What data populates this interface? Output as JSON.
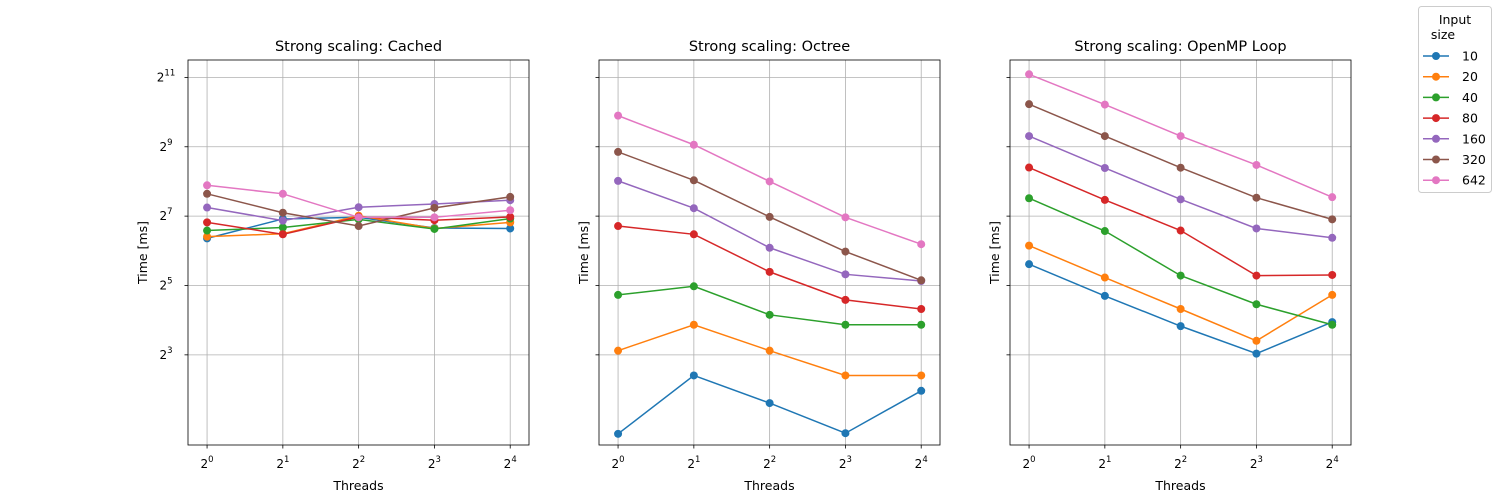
{
  "legend": {
    "title_line1": "Input",
    "title_line2": "size"
  },
  "chart_data": [
    {
      "type": "line",
      "title": "Strong scaling: Cached",
      "xlabel": "Threads",
      "ylabel": "Time [ms]",
      "x": [
        1,
        2,
        4,
        8,
        16
      ],
      "x_scale": "log2",
      "y_scale": "log2",
      "xlim": [
        0.84,
        19.0
      ],
      "ylim": [
        1.32,
        2900
      ],
      "y_ticks": [
        8,
        32,
        128,
        512,
        2048
      ],
      "y_tick_labels_shown": true,
      "grid": true,
      "legend_position": "outside right",
      "series": [
        {
          "name": "10",
          "color": "#1f77b4",
          "values": [
            82,
            121,
            125,
            101,
            100
          ]
        },
        {
          "name": "20",
          "color": "#ff7f0e",
          "values": [
            85,
            90,
            129,
            100,
            113
          ]
        },
        {
          "name": "40",
          "color": "#2ca02c",
          "values": [
            96,
            102,
            120,
            99,
            122
          ]
        },
        {
          "name": "80",
          "color": "#d62728",
          "values": [
            113,
            89,
            126,
            118,
            126
          ]
        },
        {
          "name": "160",
          "color": "#9467bd",
          "values": [
            152,
            117,
            153,
            163,
            176
          ]
        },
        {
          "name": "320",
          "color": "#8c564b",
          "values": [
            200,
            137,
            105,
            151,
            188
          ]
        },
        {
          "name": "642",
          "color": "#e377c2",
          "values": [
            237,
            200,
            125,
            125,
            144
          ]
        }
      ]
    },
    {
      "type": "line",
      "title": "Strong scaling: Octree",
      "xlabel": "Threads",
      "ylabel": "Time [ms]",
      "x": [
        1,
        2,
        4,
        8,
        16
      ],
      "x_scale": "log2",
      "y_scale": "log2",
      "xlim": [
        0.84,
        19.0
      ],
      "ylim": [
        1.32,
        2900
      ],
      "y_ticks": [
        8,
        32,
        128,
        512,
        2048
      ],
      "y_tick_labels_shown": false,
      "grid": true,
      "series": [
        {
          "name": "10",
          "color": "#1f77b4",
          "values": [
            1.65,
            5.3,
            3.05,
            1.67,
            3.9
          ]
        },
        {
          "name": "20",
          "color": "#ff7f0e",
          "values": [
            8.7,
            14.6,
            8.7,
            5.3,
            5.3
          ]
        },
        {
          "name": "40",
          "color": "#2ca02c",
          "values": [
            26.5,
            31.5,
            17.8,
            14.6,
            14.6
          ]
        },
        {
          "name": "80",
          "color": "#d62728",
          "values": [
            105,
            89,
            42,
            24,
            20
          ]
        },
        {
          "name": "160",
          "color": "#9467bd",
          "values": [
            259,
            150,
            68,
            40,
            35
          ]
        },
        {
          "name": "320",
          "color": "#8c564b",
          "values": [
            462,
            262,
            126,
            63,
            35.5
          ]
        },
        {
          "name": "642",
          "color": "#e377c2",
          "values": [
            954,
            533,
            256,
            125,
            73
          ]
        }
      ]
    },
    {
      "type": "line",
      "title": "Strong scaling: OpenMP Loop",
      "xlabel": "Threads",
      "ylabel": "Time [ms]",
      "x": [
        1,
        2,
        4,
        8,
        16
      ],
      "x_scale": "log2",
      "y_scale": "log2",
      "xlim": [
        0.84,
        19.0
      ],
      "ylim": [
        1.32,
        2900
      ],
      "y_ticks": [
        8,
        32,
        128,
        512,
        2048
      ],
      "y_tick_labels_shown": false,
      "grid": true,
      "series": [
        {
          "name": "10",
          "color": "#1f77b4",
          "values": [
            49,
            26,
            14.2,
            8.2,
            15.4
          ]
        },
        {
          "name": "20",
          "color": "#ff7f0e",
          "values": [
            71,
            37.5,
            20,
            10.6,
            26.5
          ]
        },
        {
          "name": "40",
          "color": "#2ca02c",
          "values": [
            183,
            95,
            39,
            22,
            14.6
          ]
        },
        {
          "name": "80",
          "color": "#d62728",
          "values": [
            338,
            177,
            96,
            39,
            39.5
          ]
        },
        {
          "name": "160",
          "color": "#9467bd",
          "values": [
            634,
            335,
            179,
            100,
            83
          ]
        },
        {
          "name": "320",
          "color": "#8c564b",
          "values": [
            1200,
            634,
            337,
            185,
            120
          ]
        },
        {
          "name": "642",
          "color": "#e377c2",
          "values": [
            2180,
            1190,
            634,
            356,
            187
          ]
        }
      ]
    }
  ]
}
